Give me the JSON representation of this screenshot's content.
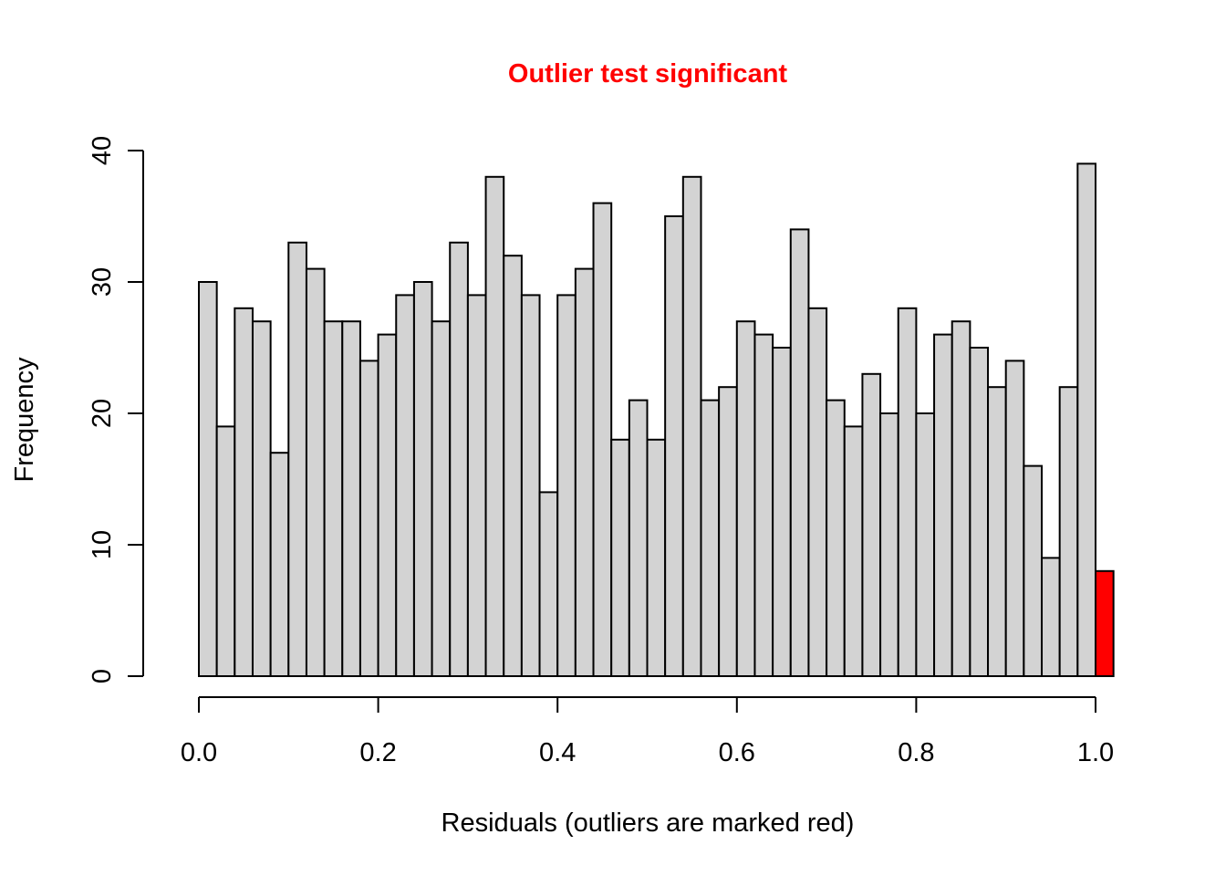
{
  "chart_data": {
    "type": "bar",
    "title": "Outlier test significant",
    "xlabel": "Residuals (outliers are marked red)",
    "ylabel": "Frequency",
    "bin_width": 0.02,
    "x_start": 0.0,
    "xlim": [
      0.0,
      1.0
    ],
    "ylim": [
      0,
      40
    ],
    "x_ticks": [
      "0.0",
      "0.2",
      "0.4",
      "0.6",
      "0.8",
      "1.0"
    ],
    "y_ticks": [
      "0",
      "10",
      "20",
      "30",
      "40"
    ],
    "values": [
      30,
      19,
      28,
      27,
      17,
      33,
      31,
      27,
      27,
      24,
      26,
      29,
      30,
      27,
      33,
      29,
      38,
      32,
      29,
      14,
      29,
      31,
      36,
      18,
      21,
      18,
      35,
      38,
      21,
      22,
      27,
      26,
      25,
      34,
      28,
      21,
      19,
      23,
      20,
      28,
      20,
      26,
      27,
      25,
      22,
      24,
      16,
      9,
      22,
      39,
      8
    ],
    "outlier_indices": [
      50
    ],
    "bar_color": "#d3d3d3",
    "outlier_color": "#ff0000",
    "title_color": "#ff0000"
  }
}
